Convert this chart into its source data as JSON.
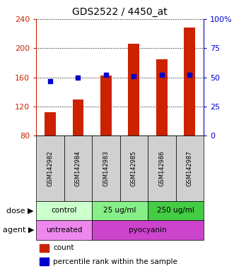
{
  "title": "GDS2522 / 4450_at",
  "samples": [
    "GSM142982",
    "GSM142984",
    "GSM142983",
    "GSM142985",
    "GSM142986",
    "GSM142987"
  ],
  "counts": [
    112,
    130,
    163,
    206,
    185,
    228
  ],
  "percentile_ranks": [
    47,
    50,
    52,
    51,
    52,
    52
  ],
  "ylim_left": [
    80,
    240
  ],
  "ylim_right": [
    0,
    100
  ],
  "left_ticks": [
    80,
    120,
    160,
    200,
    240
  ],
  "right_ticks": [
    0,
    25,
    50,
    75,
    100
  ],
  "right_tick_labels": [
    "0",
    "25",
    "50",
    "75",
    "100%"
  ],
  "bar_color": "#cc2200",
  "dot_color": "#0000cc",
  "dose_groups": [
    {
      "label": "control",
      "span": [
        0,
        2
      ],
      "color": "#ccffcc"
    },
    {
      "label": "25 ug/ml",
      "span": [
        2,
        4
      ],
      "color": "#88ee88"
    },
    {
      "label": "250 ug/ml",
      "span": [
        4,
        6
      ],
      "color": "#44cc44"
    }
  ],
  "agent_groups": [
    {
      "label": "untreated",
      "span": [
        0,
        2
      ],
      "color": "#ee88ee"
    },
    {
      "label": "pyocyanin",
      "span": [
        2,
        6
      ],
      "color": "#cc44cc"
    }
  ],
  "dose_label": "dose",
  "agent_label": "agent",
  "legend_count_label": "count",
  "legend_pct_label": "percentile rank within the sample",
  "background_color": "#ffffff",
  "plot_bg_color": "#ffffff",
  "grid_color": "#000000",
  "sample_bg_color": "#d0d0d0",
  "bar_width": 0.4
}
